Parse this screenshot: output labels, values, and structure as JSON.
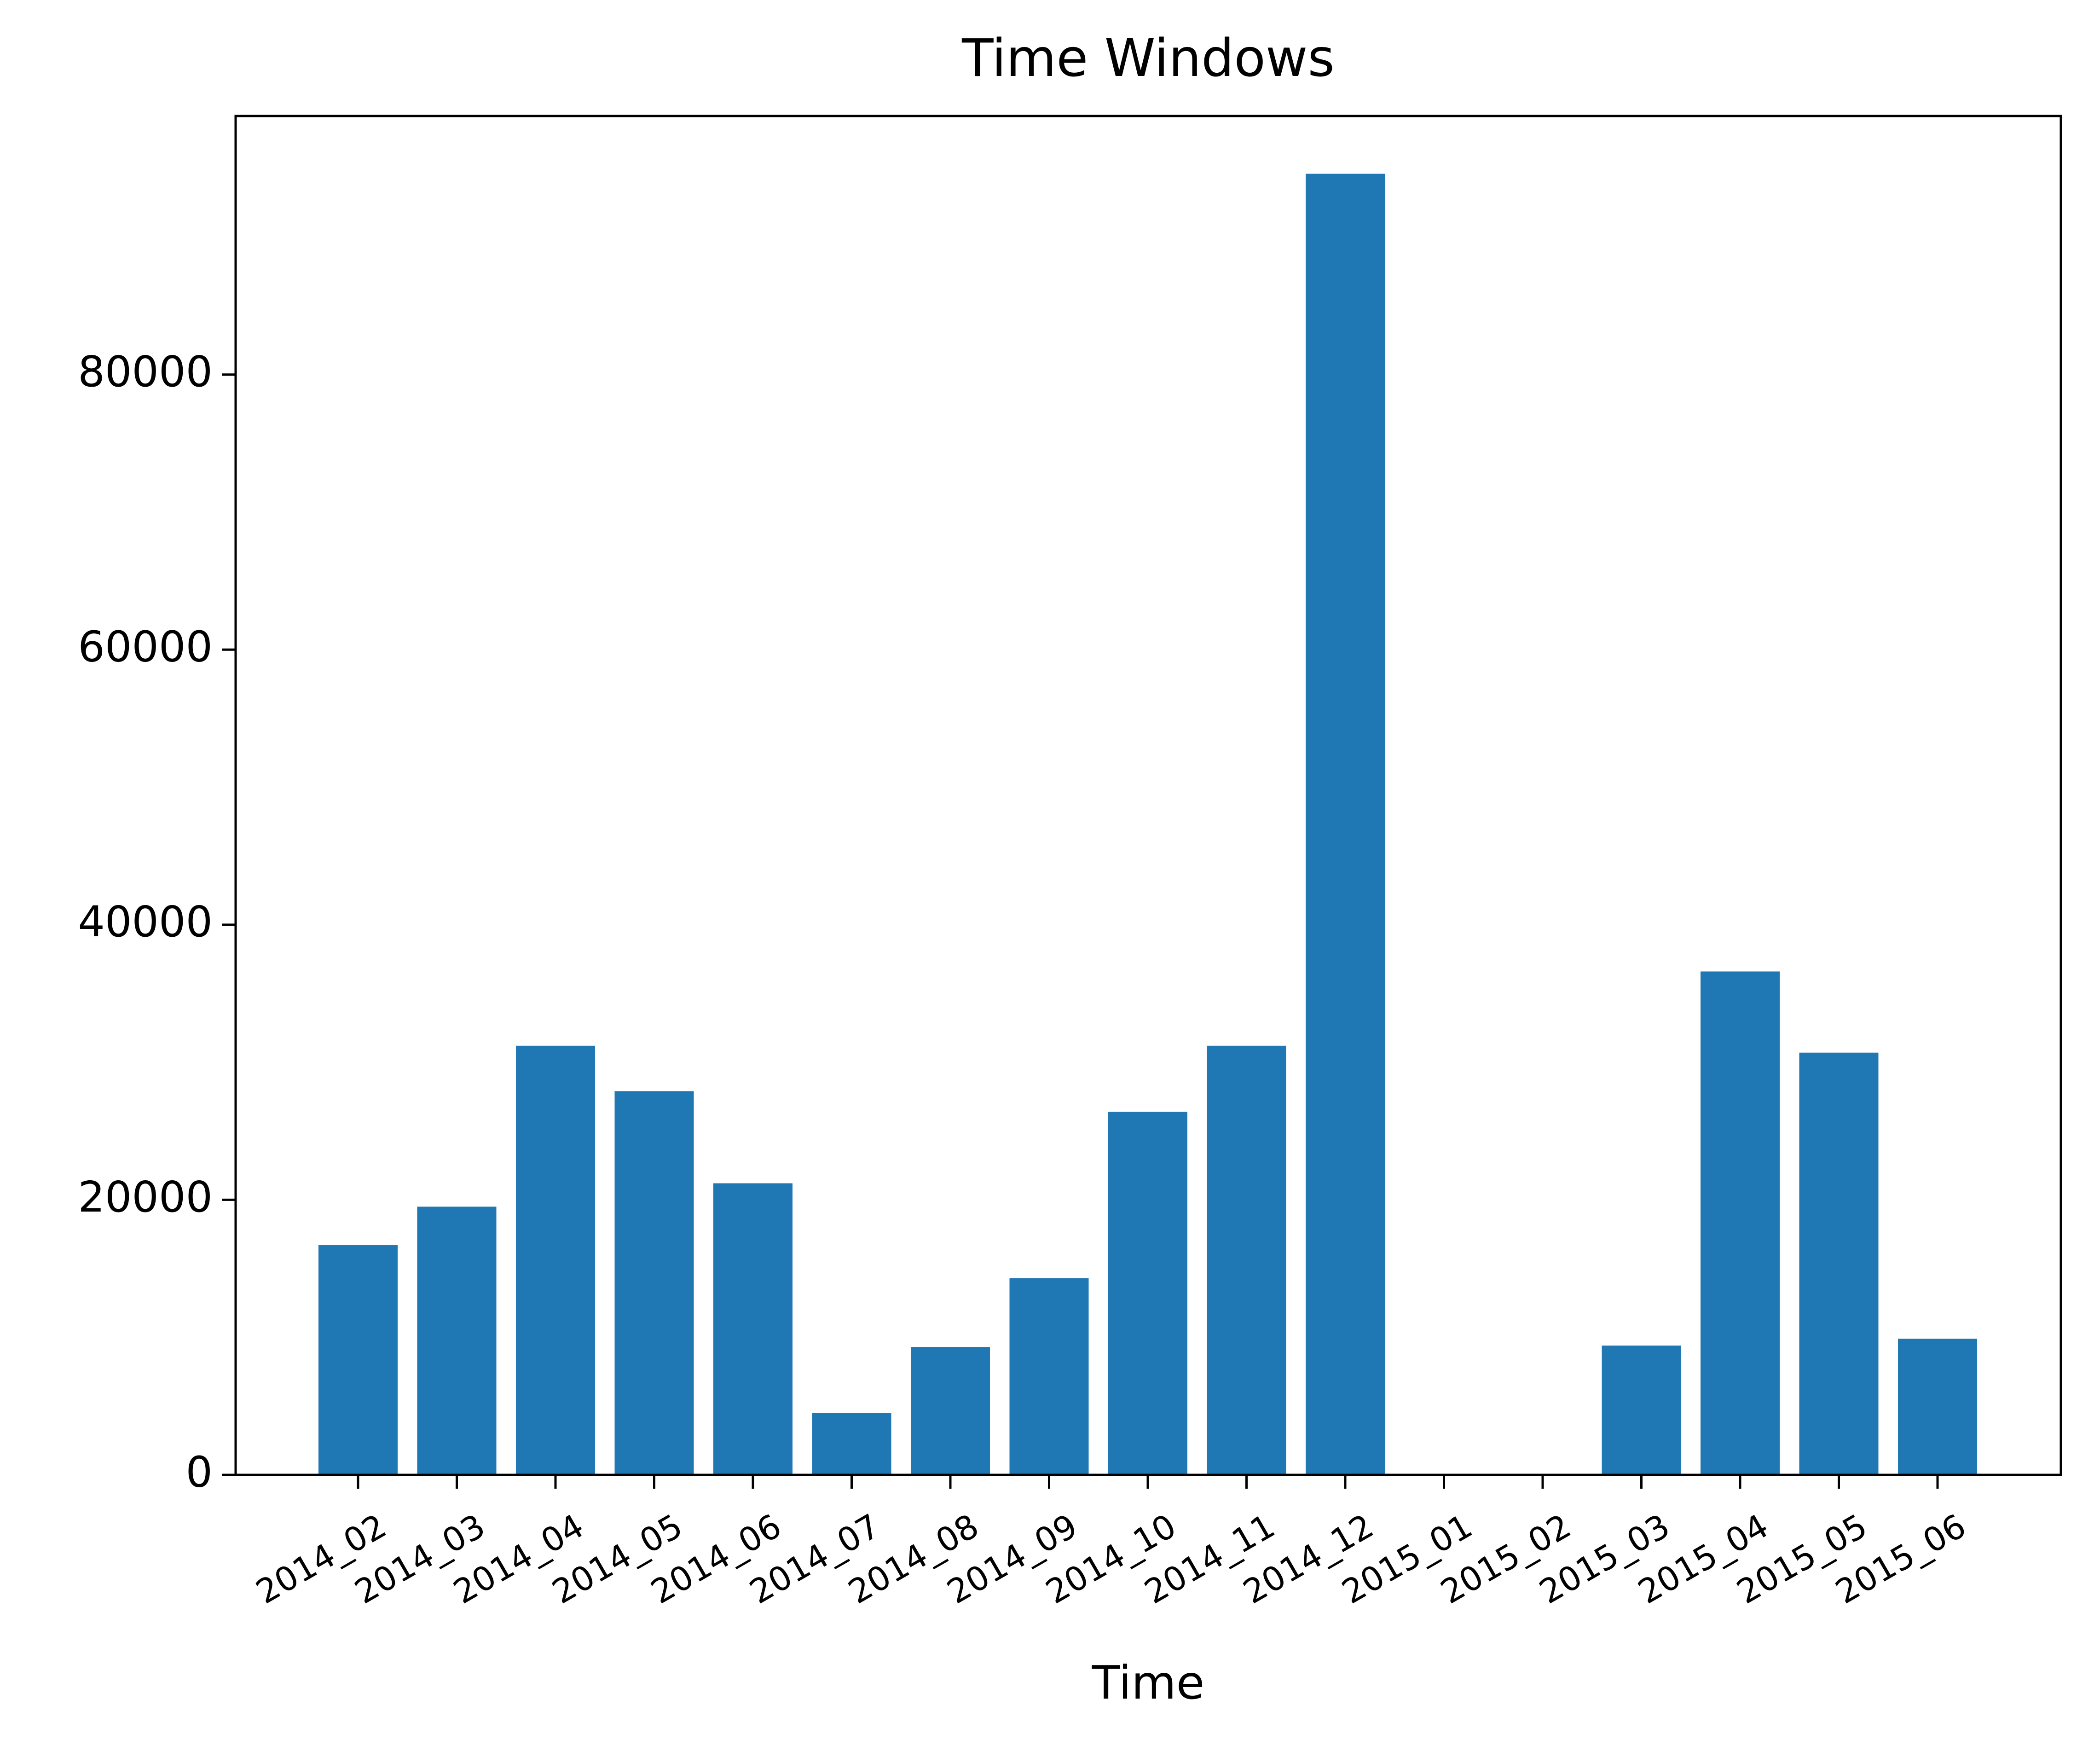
{
  "chart_data": {
    "type": "bar",
    "title": "Time Windows",
    "xlabel": "Time",
    "ylabel": "",
    "categories": [
      "2014_02",
      "2014_03",
      "2014_04",
      "2014_05",
      "2014_06",
      "2014_07",
      "2014_08",
      "2014_09",
      "2014_10",
      "2014_11",
      "2014_12",
      "2015_01",
      "2015_02",
      "2015_03",
      "2015_04",
      "2015_05",
      "2015_06"
    ],
    "values": [
      16700,
      19500,
      31200,
      27900,
      21200,
      4500,
      9300,
      14300,
      26400,
      31200,
      94600,
      0,
      0,
      9400,
      36600,
      30700,
      9900
    ],
    "ylim": [
      0,
      98800
    ],
    "yticks": [
      0,
      20000,
      40000,
      60000,
      80000
    ],
    "ytick_labels": [
      "0",
      "20000",
      "40000",
      "60000",
      "80000"
    ],
    "grid": false,
    "colors": {
      "bar": "#1f77b4"
    }
  }
}
